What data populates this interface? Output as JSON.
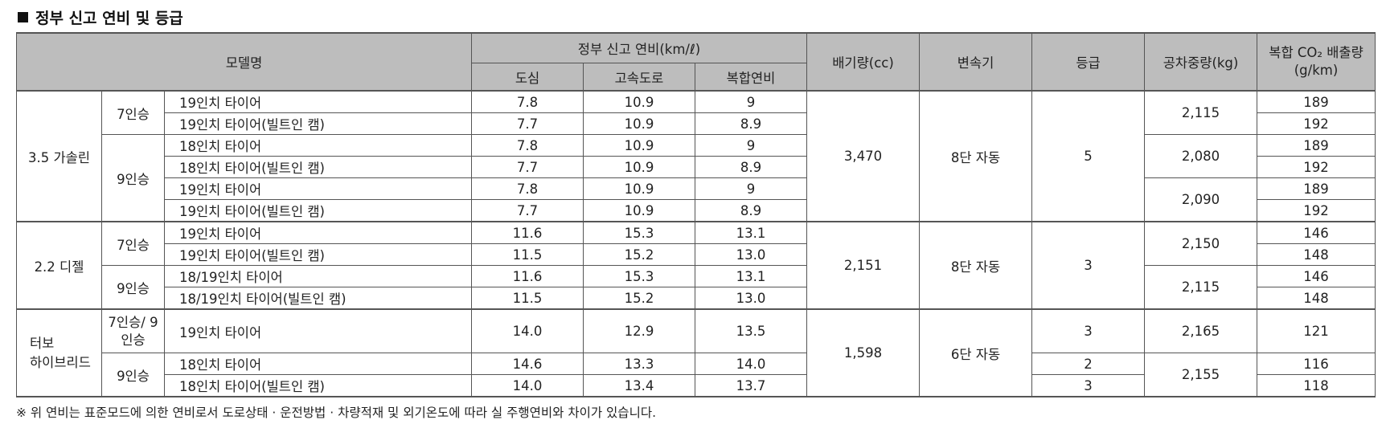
{
  "title": "정부 신고 연비 및 등급",
  "headers": {
    "model": "모델명",
    "fuel_group": "정부 신고 연비(km/ℓ)",
    "city": "도심",
    "highway": "고속도로",
    "combined": "복합연비",
    "displacement": "배기량(cc)",
    "transmission": "변속기",
    "grade": "등급",
    "curb_weight": "공차중량(kg)",
    "co2": "복합 CO₂ 배출량 (g/km)"
  },
  "groups": {
    "gasoline": {
      "name": "3.5 가솔린",
      "displacement": "3,470",
      "transmission": "8단 자동",
      "grade": "5",
      "seat7": "7인승",
      "seat9": "9인승",
      "rows": [
        {
          "tire": "19인치 타이어",
          "city": "7.8",
          "highway": "10.9",
          "combined": "9",
          "co2": "189"
        },
        {
          "tire": "19인치 타이어(빌트인 캠)",
          "city": "7.7",
          "highway": "10.9",
          "combined": "8.9",
          "co2": "192"
        },
        {
          "tire": "18인치 타이어",
          "city": "7.8",
          "highway": "10.9",
          "combined": "9",
          "co2": "189"
        },
        {
          "tire": "18인치 타이어(빌트인 캠)",
          "city": "7.7",
          "highway": "10.9",
          "combined": "8.9",
          "co2": "192"
        },
        {
          "tire": "19인치 타이어",
          "city": "7.8",
          "highway": "10.9",
          "combined": "9",
          "co2": "189"
        },
        {
          "tire": "19인치 타이어(빌트인 캠)",
          "city": "7.7",
          "highway": "10.9",
          "combined": "8.9",
          "co2": "192"
        }
      ],
      "weights": [
        "2,115",
        "2,080",
        "2,090"
      ]
    },
    "diesel": {
      "name": "2.2 디젤",
      "displacement": "2,151",
      "transmission": "8단 자동",
      "grade": "3",
      "seat7": "7인승",
      "seat9": "9인승",
      "rows": [
        {
          "tire": "19인치 타이어",
          "city": "11.6",
          "highway": "15.3",
          "combined": "13.1",
          "co2": "146"
        },
        {
          "tire": "19인치 타이어(빌트인 캠)",
          "city": "11.5",
          "highway": "15.2",
          "combined": "13.0",
          "co2": "148"
        },
        {
          "tire": "18/19인치 타이어",
          "city": "11.6",
          "highway": "15.3",
          "combined": "13.1",
          "co2": "146"
        },
        {
          "tire": "18/19인치 타이어(빌트인 캠)",
          "city": "11.5",
          "highway": "15.2",
          "combined": "13.0",
          "co2": "148"
        }
      ],
      "weights": [
        "2,150",
        "2,115"
      ]
    },
    "hybrid": {
      "name_line1": "터보",
      "name_line2": "하이브리드",
      "displacement": "1,598",
      "transmission": "6단 자동",
      "seat79": "7인승/ 9인승",
      "seat9": "9인승",
      "rows": [
        {
          "tire": "19인치 타이어",
          "city": "14.0",
          "highway": "12.9",
          "combined": "13.5",
          "grade": "3",
          "co2": "121"
        },
        {
          "tire": "18인치 타이어",
          "city": "14.6",
          "highway": "13.3",
          "combined": "14.0",
          "grade": "2",
          "co2": "116"
        },
        {
          "tire": "18인치 타이어(빌트인 캠)",
          "city": "14.0",
          "highway": "13.4",
          "combined": "13.7",
          "grade": "3",
          "co2": "118"
        }
      ],
      "weights": [
        "2,165",
        "2,155"
      ]
    }
  },
  "footnote": "※ 위 연비는 표준모드에 의한 연비로서 도로상태 · 운전방법 · 차량적재 및 외기온도에 따라 실 주행연비와 차이가 있습니다."
}
